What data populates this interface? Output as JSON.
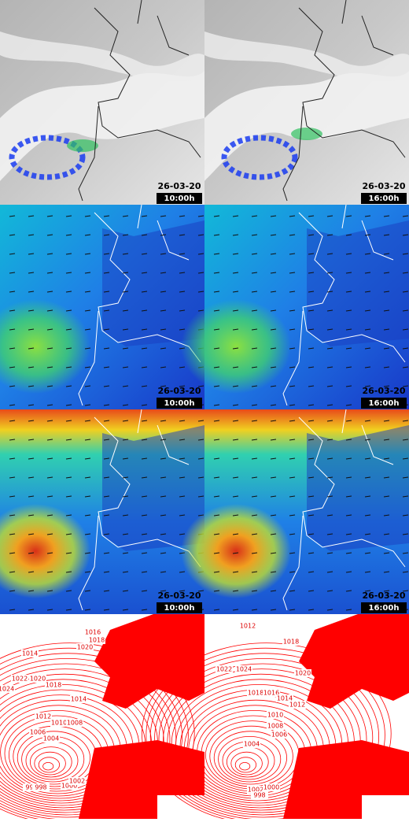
{
  "panels": [
    {
      "date": "26-03-20",
      "time": "10:00h"
    },
    {
      "date": "26-03-20",
      "time": "16:00h"
    },
    {
      "date": "26-03-20",
      "time": "10:00h"
    },
    {
      "date": "26-03-20",
      "time": "16:00h"
    },
    {
      "date": "26-03-20",
      "time": "10:00h"
    },
    {
      "date": "26-03-20",
      "time": "16:00h"
    }
  ],
  "pressure_maps": [
    {
      "labels": [
        "1014",
        "1016",
        "1018",
        "1020",
        "1024",
        "1022",
        "1020",
        "1018",
        "1014",
        "1012",
        "1010",
        "1008",
        "1006",
        "1004",
        "996",
        "998",
        "1000",
        "1002"
      ]
    },
    {
      "labels": [
        "1012",
        "1018",
        "1022",
        "1024",
        "1020",
        "1018",
        "1016",
        "1014",
        "1012",
        "1010",
        "1008",
        "1006",
        "1004",
        "1002",
        "1000",
        "998"
      ]
    }
  ]
}
